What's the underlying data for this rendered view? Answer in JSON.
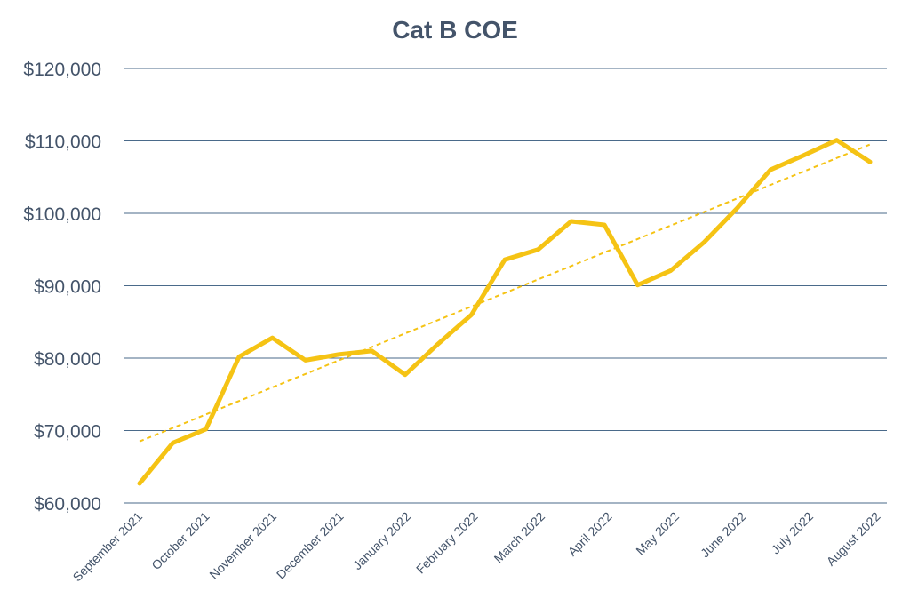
{
  "chart_data": {
    "type": "line",
    "title": "Cat B COE",
    "xlabel": "",
    "ylabel": "",
    "ylim": [
      60000,
      120000
    ],
    "yticks": [
      60000,
      70000,
      80000,
      90000,
      100000,
      110000,
      120000
    ],
    "ytick_labels": [
      "$60,000",
      "$70,000",
      "$80,000",
      "$90,000",
      "$100,000",
      "$110,000",
      "$120,000"
    ],
    "x_tick_labels": [
      "September 2021",
      "October 2021",
      "November 2021",
      "December 2021",
      "January 2022",
      "February 2022",
      "March 2022",
      "April 2022",
      "May 2022",
      "June 2022",
      "July 2022",
      "August 2022"
    ],
    "grid": true,
    "series": [
      {
        "values": [
          62700,
          68300,
          70200,
          80200,
          82800,
          79700,
          80500,
          81000,
          77700,
          82000,
          86000,
          93600,
          95000,
          98900,
          98400,
          90100,
          92100,
          96000,
          100700,
          106000,
          108000,
          110100,
          107100
        ],
        "color": "#f5c314",
        "style": "solid"
      },
      {
        "type": "trendline",
        "values": [
          68500,
          109500
        ],
        "color": "#f5c314",
        "style": "dashed"
      }
    ]
  }
}
